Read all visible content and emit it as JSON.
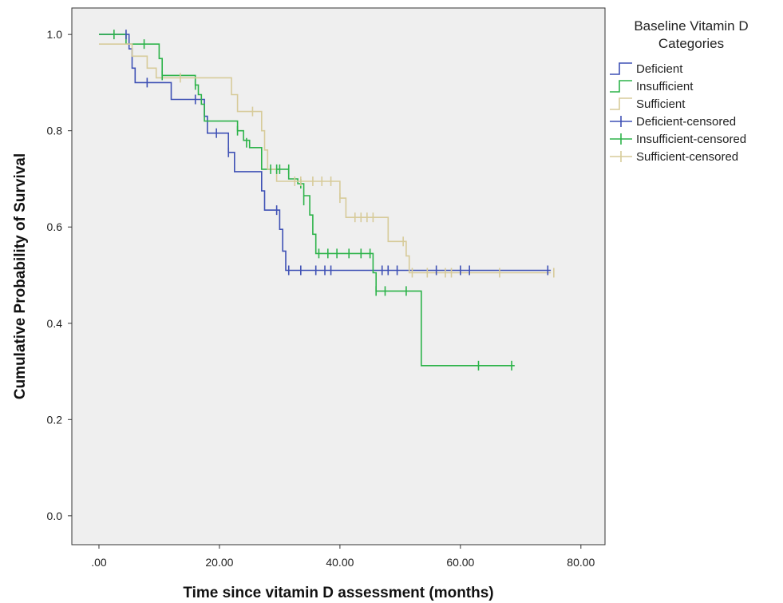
{
  "chart_data": {
    "type": "line",
    "subtype": "kaplan-meier step curves with censor marks",
    "xlabel": "Time since vitamin D assessment (months)",
    "ylabel": "Cumulative Probability of Survival",
    "xlim": [
      -4.5,
      84
    ],
    "ylim": [
      -0.06,
      1.055
    ],
    "xticks": [
      0,
      20,
      40,
      60,
      80
    ],
    "xtick_labels": [
      ".00",
      "20.00",
      "40.00",
      "60.00",
      "80.00"
    ],
    "yticks": [
      0.0,
      0.2,
      0.4,
      0.6,
      0.8,
      1.0
    ],
    "ytick_labels": [
      "0.0",
      "0.2",
      "0.4",
      "0.6",
      "0.8",
      "1.0"
    ],
    "plot_background": "#efefef",
    "grid": false,
    "legend": {
      "title": "Baseline Vitamin D Categories",
      "position": "right",
      "entries": [
        "Deficient",
        "Insufficient",
        "Sufficient",
        "Deficient-censored",
        "Insufficient-censored",
        "Sufficient-censored"
      ]
    },
    "series": [
      {
        "name": "Deficient",
        "color": "#3f51b5",
        "steps": [
          [
            0,
            1.0
          ],
          [
            5,
            0.97
          ],
          [
            5.5,
            0.93
          ],
          [
            6,
            0.9
          ],
          [
            12,
            0.865
          ],
          [
            17.5,
            0.83
          ],
          [
            18,
            0.795
          ],
          [
            21.5,
            0.755
          ],
          [
            22.5,
            0.715
          ],
          [
            27,
            0.675
          ],
          [
            27.5,
            0.635
          ],
          [
            30,
            0.595
          ],
          [
            30.5,
            0.55
          ],
          [
            31,
            0.51
          ],
          [
            75,
            0.51
          ]
        ],
        "censored": [
          [
            4.5,
            1.0
          ],
          [
            8,
            0.9
          ],
          [
            16,
            0.865
          ],
          [
            19.5,
            0.795
          ],
          [
            21.5,
            0.755
          ],
          [
            29.5,
            0.635
          ],
          [
            31.5,
            0.51
          ],
          [
            33.5,
            0.51
          ],
          [
            36,
            0.51
          ],
          [
            37.5,
            0.51
          ],
          [
            38.5,
            0.51
          ],
          [
            47,
            0.51
          ],
          [
            48,
            0.51
          ],
          [
            49.5,
            0.51
          ],
          [
            56,
            0.51
          ],
          [
            60,
            0.51
          ],
          [
            61.5,
            0.51
          ],
          [
            74.5,
            0.51
          ]
        ]
      },
      {
        "name": "Insufficient",
        "color": "#2db34a",
        "steps": [
          [
            0,
            1.0
          ],
          [
            4.5,
            0.98
          ],
          [
            10,
            0.95
          ],
          [
            10.5,
            0.915
          ],
          [
            16,
            0.895
          ],
          [
            16.5,
            0.875
          ],
          [
            17,
            0.855
          ],
          [
            17.5,
            0.82
          ],
          [
            23,
            0.8
          ],
          [
            24,
            0.78
          ],
          [
            25,
            0.765
          ],
          [
            27,
            0.72
          ],
          [
            31.5,
            0.7
          ],
          [
            33,
            0.69
          ],
          [
            34,
            0.665
          ],
          [
            35,
            0.625
          ],
          [
            35.5,
            0.585
          ],
          [
            36,
            0.545
          ],
          [
            45.5,
            0.505
          ],
          [
            46,
            0.467
          ],
          [
            53.5,
            0.312
          ],
          [
            69,
            0.312
          ]
        ],
        "censored": [
          [
            2.5,
            1.0
          ],
          [
            7.5,
            0.98
          ],
          [
            10.5,
            0.915
          ],
          [
            16,
            0.895
          ],
          [
            23,
            0.8
          ],
          [
            24.5,
            0.775
          ],
          [
            28.5,
            0.72
          ],
          [
            29.5,
            0.72
          ],
          [
            30,
            0.72
          ],
          [
            31.5,
            0.72
          ],
          [
            33.5,
            0.69
          ],
          [
            34,
            0.655
          ],
          [
            36.5,
            0.545
          ],
          [
            38,
            0.545
          ],
          [
            39.5,
            0.545
          ],
          [
            41.5,
            0.545
          ],
          [
            43.5,
            0.545
          ],
          [
            45,
            0.545
          ],
          [
            46,
            0.467
          ],
          [
            47.5,
            0.467
          ],
          [
            51,
            0.467
          ],
          [
            63,
            0.312
          ],
          [
            68.5,
            0.312
          ]
        ]
      },
      {
        "name": "Sufficient",
        "color": "#d7cb9a",
        "steps": [
          [
            0,
            0.98
          ],
          [
            5.5,
            0.955
          ],
          [
            8,
            0.93
          ],
          [
            9.5,
            0.91
          ],
          [
            12,
            0.91
          ],
          [
            16,
            0.91
          ],
          [
            22,
            0.875
          ],
          [
            23,
            0.84
          ],
          [
            27,
            0.8
          ],
          [
            27.5,
            0.76
          ],
          [
            28,
            0.72
          ],
          [
            29.5,
            0.695
          ],
          [
            32,
            0.695
          ],
          [
            40,
            0.66
          ],
          [
            41,
            0.62
          ],
          [
            48,
            0.57
          ],
          [
            51,
            0.54
          ],
          [
            51.5,
            0.505
          ],
          [
            75,
            0.505
          ]
        ],
        "censored": [
          [
            13.5,
            0.91
          ],
          [
            25.5,
            0.84
          ],
          [
            32.5,
            0.695
          ],
          [
            33.5,
            0.695
          ],
          [
            35.5,
            0.695
          ],
          [
            37,
            0.695
          ],
          [
            38.5,
            0.695
          ],
          [
            40,
            0.66
          ],
          [
            42.5,
            0.62
          ],
          [
            43.5,
            0.62
          ],
          [
            44.5,
            0.62
          ],
          [
            45.5,
            0.62
          ],
          [
            50.5,
            0.57
          ],
          [
            52,
            0.505
          ],
          [
            54.5,
            0.505
          ],
          [
            57.5,
            0.505
          ],
          [
            58.5,
            0.505
          ],
          [
            66.5,
            0.505
          ],
          [
            75.5,
            0.505
          ]
        ]
      }
    ]
  }
}
